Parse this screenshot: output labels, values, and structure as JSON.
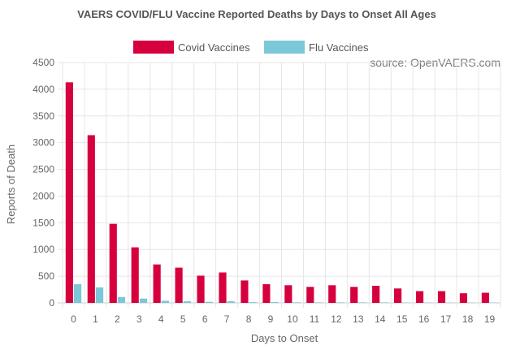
{
  "chart_data": {
    "type": "bar",
    "title": "VAERS COVID/FLU Vaccine Reported Deaths by Days to Onset All Ages",
    "xlabel": "Days to Onset",
    "ylabel": "Reports of Death",
    "source": "source: OpenVAERS.com",
    "categories": [
      "0",
      "1",
      "2",
      "3",
      "4",
      "5",
      "6",
      "7",
      "8",
      "9",
      "10",
      "11",
      "12",
      "13",
      "14",
      "15",
      "16",
      "17",
      "18",
      "19"
    ],
    "series": [
      {
        "name": "Covid Vaccines",
        "color": "#d6003f",
        "values": [
          4130,
          3140,
          1480,
          1040,
          720,
          660,
          510,
          570,
          420,
          350,
          330,
          300,
          330,
          300,
          320,
          270,
          220,
          220,
          180,
          190
        ]
      },
      {
        "name": "Flu Vaccines",
        "color": "#7ac8d8",
        "values": [
          350,
          290,
          110,
          80,
          40,
          30,
          20,
          30,
          15,
          15,
          10,
          10,
          10,
          10,
          10,
          5,
          5,
          5,
          5,
          5
        ]
      }
    ],
    "ylim": [
      0,
      4500
    ],
    "yticks": [
      0,
      500,
      1000,
      1500,
      2000,
      2500,
      3000,
      3500,
      4000,
      4500
    ],
    "grid": true,
    "legend_position": "top-center"
  }
}
